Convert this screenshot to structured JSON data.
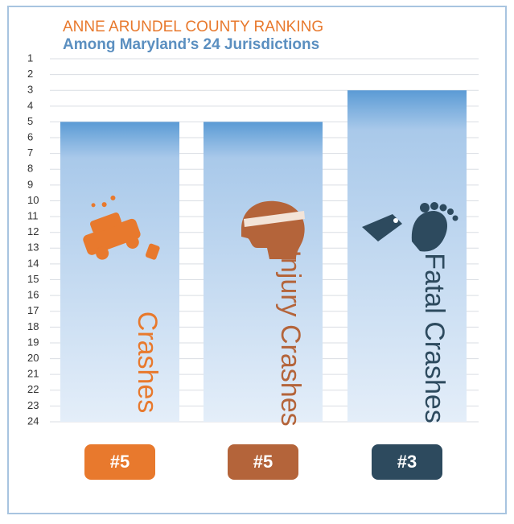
{
  "chart_data": {
    "type": "bar",
    "title": "ANNE ARUNDEL COUNTY RANKING",
    "subtitle": "Among Maryland’s 24 Jurisdictions",
    "categories": [
      "Crashes",
      "Injury Crashes",
      "Fatal Crashes"
    ],
    "values": [
      5,
      5,
      3
    ],
    "value_labels": [
      "#5",
      "#5",
      "#3"
    ],
    "color": "#5b9bd5",
    "label_colors": [
      "#e8792d",
      "#b4643a",
      "#2d4a5e"
    ],
    "ylim": [
      1,
      24
    ],
    "y_inverted": true,
    "yticks": [
      1,
      2,
      3,
      4,
      5,
      6,
      7,
      8,
      9,
      10,
      11,
      12,
      13,
      14,
      15,
      16,
      17,
      18,
      19,
      20,
      21,
      22,
      23,
      24
    ],
    "grid": true
  }
}
